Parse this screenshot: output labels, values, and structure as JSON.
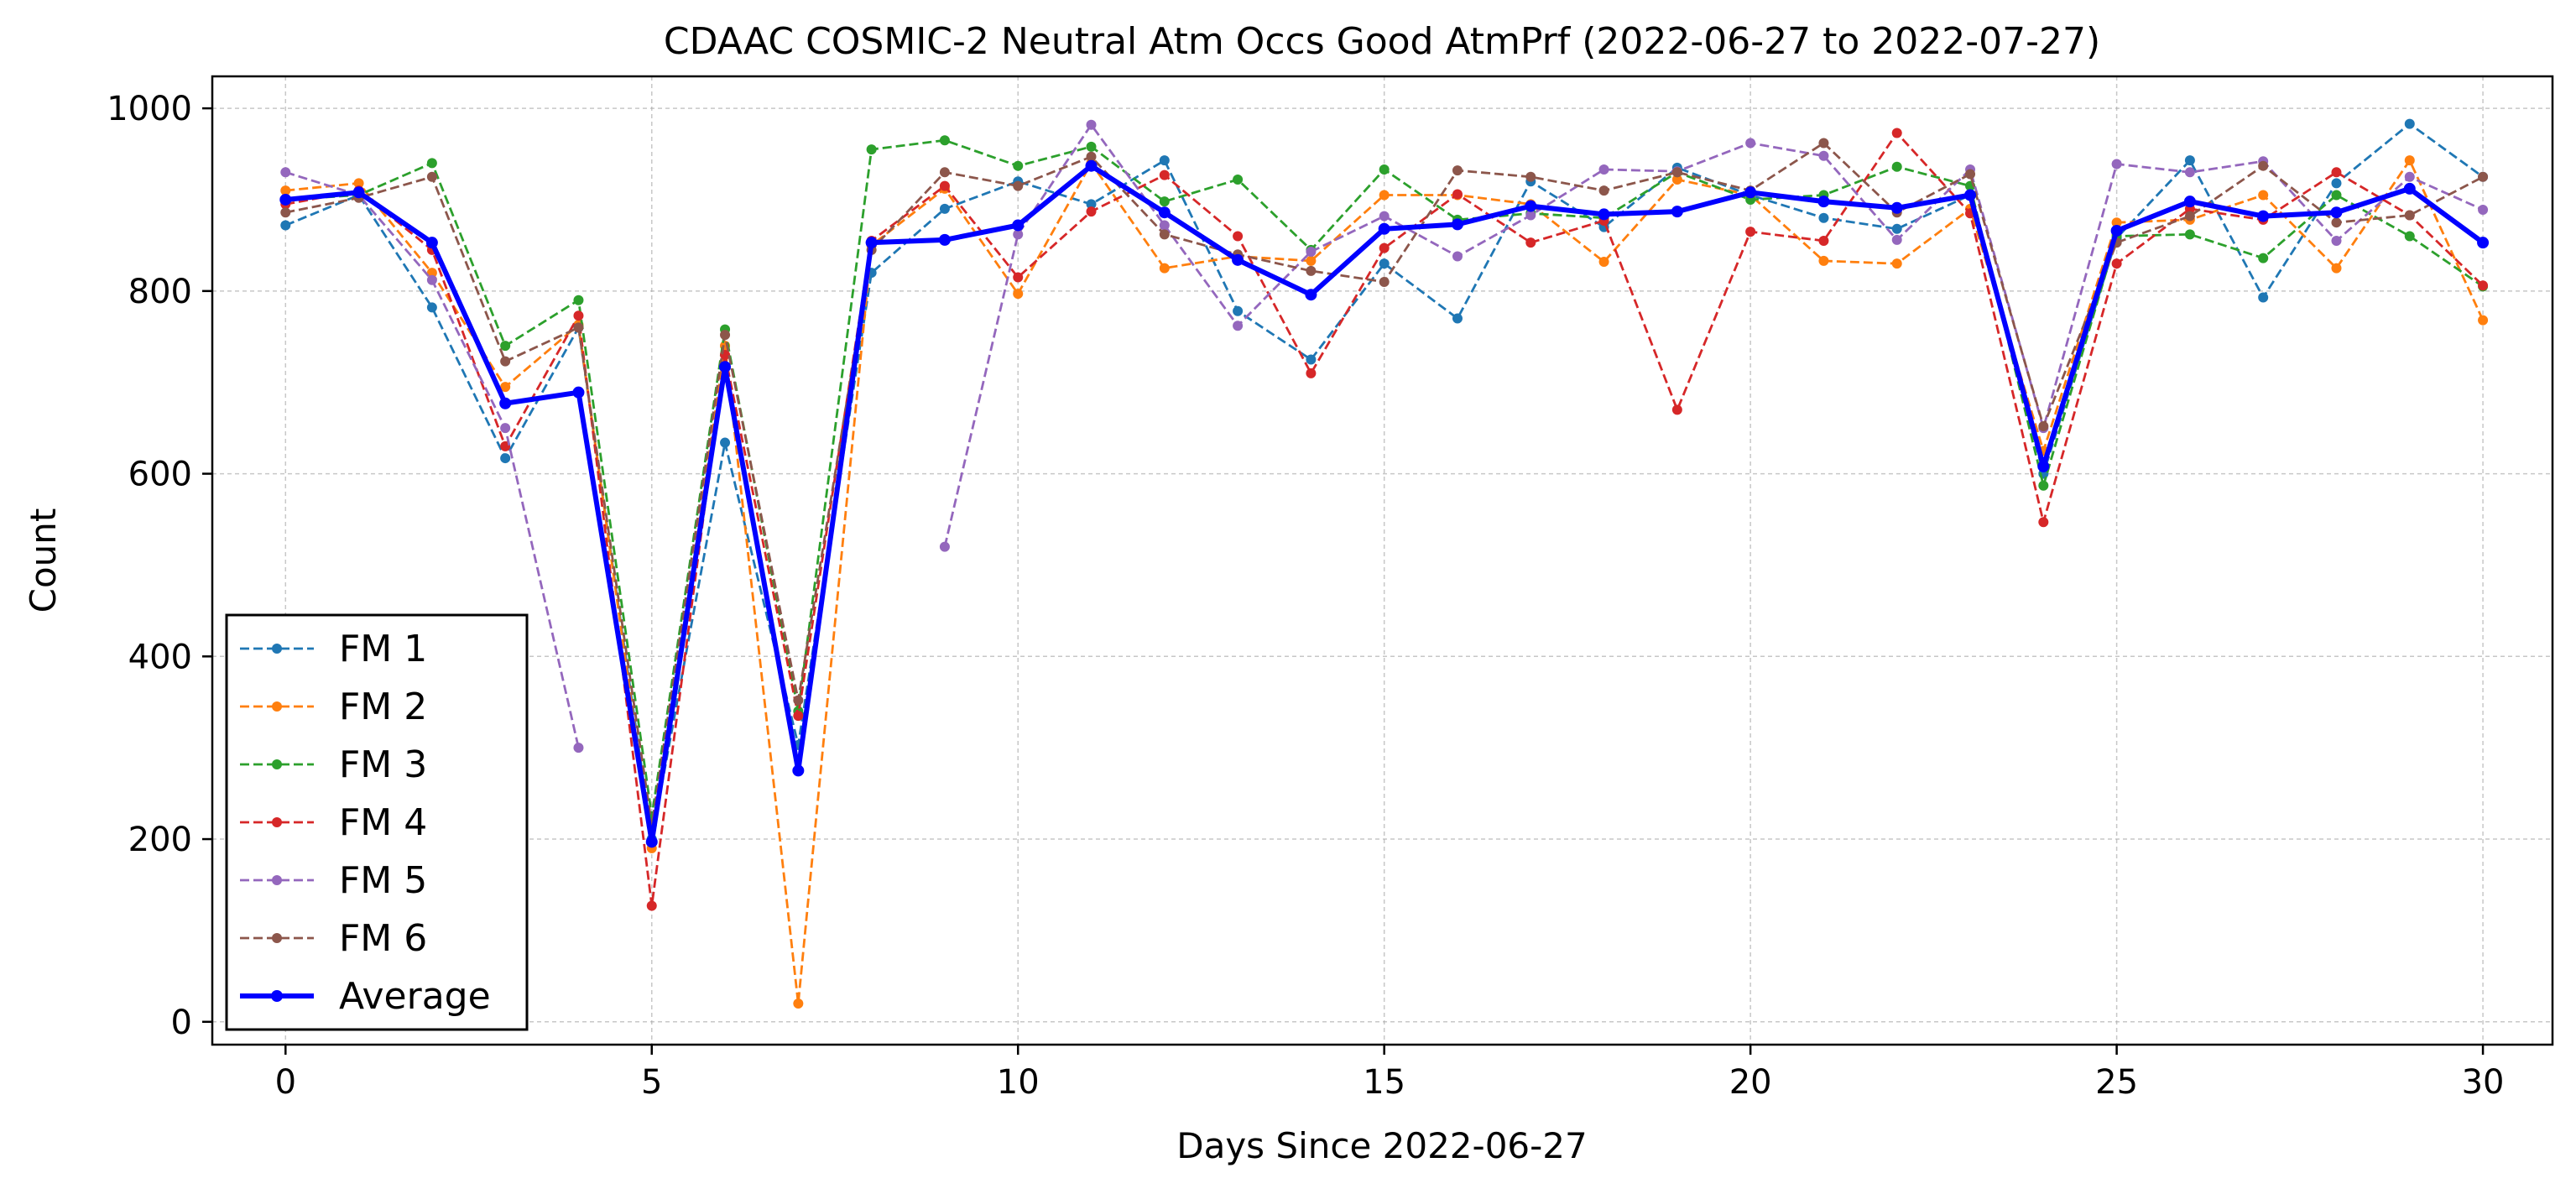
{
  "chart_data": {
    "type": "line",
    "title": "CDAAC COSMIC-2 Neutral Atm Occs Good AtmPrf (2022-06-27 to 2022-07-27)",
    "xlabel": "Days Since 2022-06-27",
    "ylabel": "Count",
    "xlim": [
      -1,
      30.95
    ],
    "ylim": [
      -25,
      1035
    ],
    "xticks": [
      0,
      5,
      10,
      15,
      20,
      25,
      30
    ],
    "yticks": [
      0,
      200,
      400,
      600,
      800,
      1000
    ],
    "grid": true,
    "legend": "bottom-left",
    "x": [
      0,
      1,
      2,
      3,
      4,
      5,
      6,
      7,
      8,
      9,
      10,
      11,
      12,
      13,
      14,
      15,
      16,
      17,
      18,
      19,
      20,
      21,
      22,
      23,
      24,
      25,
      26,
      27,
      28,
      29,
      30
    ],
    "series": [
      {
        "name": "FM 1",
        "color": "#1f77b4",
        "style": "dashed",
        "values": [
          872,
          905,
          782,
          617,
          760,
          200,
          634,
          303,
          820,
          890,
          920,
          895,
          943,
          778,
          725,
          830,
          770,
          920,
          870,
          935,
          905,
          880,
          868,
          905,
          600,
          858,
          943,
          793,
          918,
          983,
          925
        ]
      },
      {
        "name": "FM 2",
        "color": "#ff7f0e",
        "style": "dashed",
        "values": [
          910,
          918,
          820,
          695,
          763,
          190,
          740,
          20,
          850,
          912,
          797,
          940,
          825,
          838,
          833,
          905,
          905,
          895,
          832,
          922,
          905,
          833,
          830,
          890,
          625,
          875,
          878,
          905,
          825,
          943,
          768
        ]
      },
      {
        "name": "FM 3",
        "color": "#2ca02c",
        "style": "dashed",
        "values": [
          900,
          905,
          940,
          740,
          790,
          225,
          758,
          340,
          955,
          965,
          937,
          958,
          898,
          922,
          845,
          933,
          878,
          885,
          880,
          930,
          900,
          905,
          936,
          915,
          587,
          860,
          862,
          836,
          905,
          860,
          805
        ]
      },
      {
        "name": "FM 4",
        "color": "#d62728",
        "style": "dashed",
        "values": [
          895,
          910,
          845,
          630,
          773,
          127,
          730,
          335,
          855,
          915,
          815,
          887,
          927,
          860,
          710,
          847,
          906,
          853,
          877,
          670,
          865,
          855,
          973,
          885,
          547,
          830,
          890,
          878,
          930,
          883,
          806
        ]
      },
      {
        "name": "FM 5",
        "color": "#9467bd",
        "style": "dashed",
        "values": [
          930,
          905,
          812,
          650,
          300,
          null,
          null,
          null,
          null,
          520,
          862,
          982,
          872,
          762,
          843,
          882,
          838,
          883,
          933,
          931,
          962,
          948,
          856,
          933,
          650,
          939,
          930,
          942,
          855,
          925,
          889
        ]
      },
      {
        "name": "FM 6",
        "color": "#8c564b",
        "style": "dashed",
        "values": [
          886,
          902,
          925,
          723,
          760,
          215,
          752,
          352,
          845,
          930,
          915,
          947,
          862,
          840,
          822,
          810,
          932,
          925,
          910,
          930,
          910,
          962,
          886,
          928,
          652,
          853,
          882,
          937,
          875,
          883,
          925
        ]
      },
      {
        "name": "Average",
        "color": "#0000ff",
        "style": "solid",
        "values": [
          900,
          908,
          853,
          677,
          689,
          197,
          717,
          275,
          853,
          856,
          872,
          937,
          886,
          834,
          796,
          868,
          873,
          893,
          884,
          887,
          908,
          898,
          891,
          905,
          608,
          866,
          898,
          882,
          886,
          912,
          853
        ]
      }
    ]
  }
}
